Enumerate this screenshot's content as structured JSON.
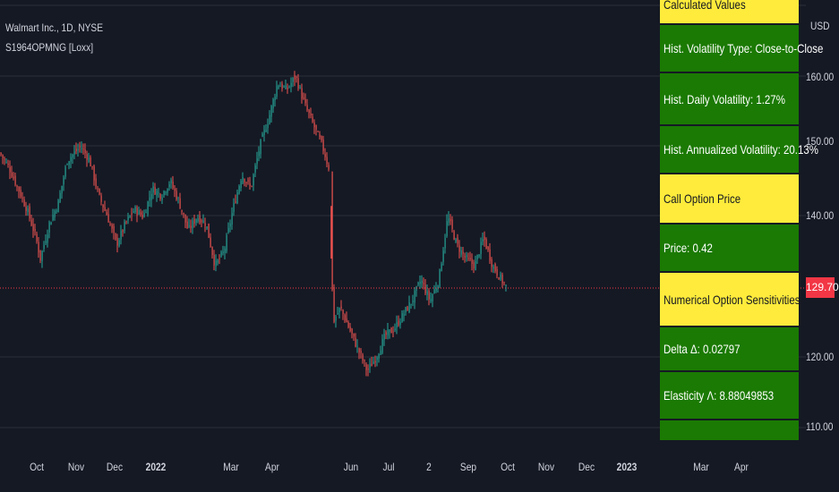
{
  "chart": {
    "symbol_title": "Walmart Inc., 1D, NYSE",
    "indicator_label": "S1964OPMNG [Loxx]",
    "currency": "USD",
    "last_price_label": "129.70",
    "last_price": 129.7,
    "colors": {
      "background": "#151924",
      "up": "#26a69a",
      "down": "#ef5350",
      "grid": "#2a2e39",
      "price_line": "#f23645"
    },
    "y_axis": {
      "ticks": [
        "160.00",
        "150.00",
        "140.00",
        "120.00",
        "110.00"
      ],
      "range": [
        107,
        170
      ]
    },
    "x_axis": {
      "ticks": [
        "Oct",
        "Nov",
        "Dec",
        "2022",
        "Mar",
        "Apr",
        "Jun",
        "Jul",
        "2",
        "Sep",
        "Oct",
        "Nov",
        "Dec",
        "2023",
        "Mar",
        "Apr"
      ]
    }
  },
  "table": {
    "rows": [
      {
        "text": "Calculated Values",
        "color": "yellow"
      },
      {
        "text": "Hist. Volatility Type: Close-to-Close",
        "color": "green"
      },
      {
        "text": "Hist. Daily Volatility: 1.27%",
        "color": "green"
      },
      {
        "text": "Hist. Annualized Volatility: 20.13%",
        "color": "green"
      },
      {
        "text": "Call Option Price",
        "color": "yellow"
      },
      {
        "text": "Price: 0.42",
        "color": "green"
      },
      {
        "text": "Numerical Option Sensitivities",
        "color": "yellow"
      },
      {
        "text": "Delta Δ: 0.02797",
        "color": "green"
      },
      {
        "text": "Elasticity Λ: 8.88049853",
        "color": "green"
      }
    ]
  }
}
